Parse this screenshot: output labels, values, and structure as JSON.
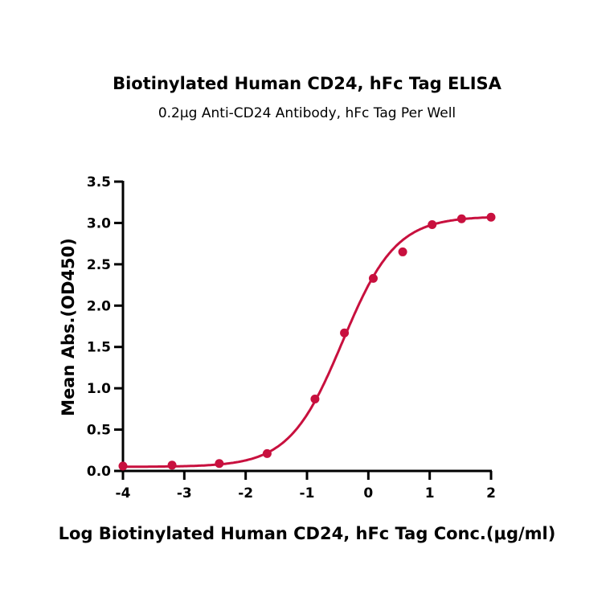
{
  "chart_data": {
    "type": "scatter",
    "title": "Biotinylated Human CD24, hFc Tag ELISA",
    "subtitle": "0.2μg Anti-CD24 Antibody, hFc Tag Per Well",
    "xlabel": "Log Biotinylated Human CD24, hFc Tag Conc.(μg/ml)",
    "ylabel": "Mean Abs.(OD450)",
    "xlim": [
      -4,
      2
    ],
    "ylim": [
      0,
      3.5
    ],
    "xticks": [
      "-4",
      "-3",
      "-2",
      "-1",
      "0",
      "1",
      "2"
    ],
    "yticks": [
      "0.0",
      "0.5",
      "1.0",
      "1.5",
      "2.0",
      "2.5",
      "3.0",
      "3.5"
    ],
    "grid": false,
    "legend": "none",
    "series": [
      {
        "x": [
          -4.0,
          -3.2,
          -2.43,
          -1.65,
          -0.87,
          -0.39,
          0.08,
          0.56,
          1.04,
          1.52,
          2.0
        ],
        "y": [
          0.06,
          0.07,
          0.09,
          0.21,
          0.87,
          1.67,
          2.33,
          2.65,
          2.98,
          3.05,
          3.07
        ],
        "color": "#c8103e",
        "fit": "sigmoidal curve"
      }
    ]
  }
}
